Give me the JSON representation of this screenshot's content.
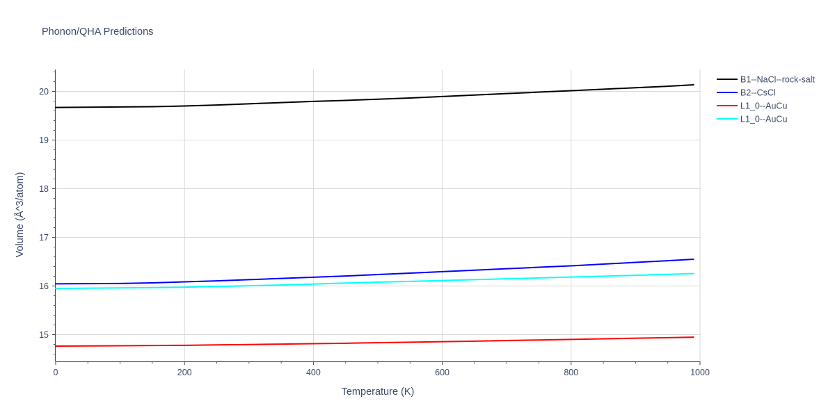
{
  "chart_data": {
    "type": "line",
    "title": "Phonon/QHA Predictions",
    "xlabel": "Temperature (K)",
    "ylabel": "Volume (Å^3/atom)",
    "xlim": [
      0,
      1000
    ],
    "ylim": [
      14.45,
      20.45
    ],
    "x_ticks": [
      0,
      200,
      400,
      600,
      800,
      1000
    ],
    "y_ticks": [
      15,
      16,
      17,
      18,
      19,
      20
    ],
    "grid": true,
    "legend_position": "top-right",
    "series": [
      {
        "name": "B1--NaCl--rock-salt",
        "color": "#000000",
        "x": [
          0,
          50,
          100,
          150,
          200,
          250,
          300,
          350,
          400,
          450,
          500,
          550,
          600,
          650,
          700,
          750,
          800,
          850,
          900,
          950,
          990
        ],
        "y": [
          19.67,
          19.675,
          19.68,
          19.685,
          19.7,
          19.72,
          19.745,
          19.77,
          19.795,
          19.815,
          19.84,
          19.865,
          19.895,
          19.925,
          19.955,
          19.985,
          20.015,
          20.045,
          20.075,
          20.105,
          20.135
        ]
      },
      {
        "name": "B2--CsCl",
        "color": "#0000ff",
        "x": [
          0,
          50,
          100,
          150,
          200,
          250,
          300,
          350,
          400,
          450,
          500,
          550,
          600,
          650,
          700,
          750,
          800,
          850,
          900,
          950,
          990
        ],
        "y": [
          16.045,
          16.048,
          16.052,
          16.065,
          16.085,
          16.105,
          16.13,
          16.155,
          16.18,
          16.205,
          16.235,
          16.265,
          16.295,
          16.325,
          16.355,
          16.385,
          16.415,
          16.45,
          16.485,
          16.52,
          16.55
        ]
      },
      {
        "name": "L1_0--AuCu",
        "color": "#ff0000",
        "x": [
          0,
          50,
          100,
          150,
          200,
          250,
          300,
          350,
          400,
          450,
          500,
          550,
          600,
          650,
          700,
          750,
          800,
          850,
          900,
          950,
          990
        ],
        "y": [
          14.765,
          14.768,
          14.772,
          14.776,
          14.781,
          14.789,
          14.797,
          14.806,
          14.815,
          14.824,
          14.834,
          14.844,
          14.855,
          14.866,
          14.878,
          14.89,
          14.902,
          14.914,
          14.926,
          14.938,
          14.948
        ]
      },
      {
        "name": "L1_0--AuCu",
        "color": "#00ffff",
        "x": [
          0,
          50,
          100,
          150,
          200,
          250,
          300,
          350,
          400,
          450,
          500,
          550,
          600,
          650,
          700,
          750,
          800,
          850,
          900,
          950,
          990
        ],
        "y": [
          15.95,
          15.955,
          15.96,
          15.966,
          15.975,
          15.99,
          16.005,
          16.02,
          16.04,
          16.06,
          16.078,
          16.095,
          16.112,
          16.13,
          16.148,
          16.166,
          16.184,
          16.202,
          16.22,
          16.24,
          16.255
        ]
      }
    ]
  }
}
